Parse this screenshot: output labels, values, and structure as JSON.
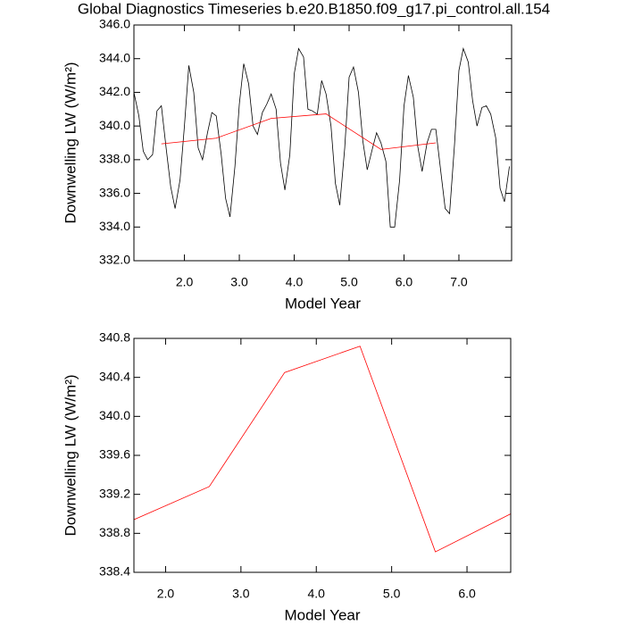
{
  "chart_data": [
    {
      "type": "line",
      "title": "Global Diagnostics Timeseries b.e20.B1850.f09_g17.pi_control.all.154",
      "xlabel": "Model Year",
      "ylabel": "Downwelling LW (W/m²)",
      "xlim": [
        1.08,
        7.96
      ],
      "ylim": [
        332,
        346
      ],
      "xticks": [
        {
          "value": 2,
          "label": "2.0"
        },
        {
          "value": 3,
          "label": "3.0"
        },
        {
          "value": 4,
          "label": "4.0"
        },
        {
          "value": 5,
          "label": "5.0"
        },
        {
          "value": 6,
          "label": "6.0"
        },
        {
          "value": 7,
          "label": "7.0"
        }
      ],
      "yticks": [
        {
          "value": 332,
          "label": "332.0"
        },
        {
          "value": 334,
          "label": "334.0"
        },
        {
          "value": 336,
          "label": "336.0"
        },
        {
          "value": 338,
          "label": "338.0"
        },
        {
          "value": 340,
          "label": "340.0"
        },
        {
          "value": 342,
          "label": "342.0"
        },
        {
          "value": 344,
          "label": "344.0"
        },
        {
          "value": 346,
          "label": "346.0"
        }
      ],
      "series": [
        {
          "color": "#000000",
          "x": [
            1.08,
            1.17,
            1.25,
            1.33,
            1.42,
            1.5,
            1.58,
            1.67,
            1.75,
            1.83,
            1.92,
            2.0,
            2.08,
            2.17,
            2.25,
            2.33,
            2.42,
            2.5,
            2.58,
            2.67,
            2.75,
            2.83,
            2.92,
            3.0,
            3.08,
            3.17,
            3.25,
            3.33,
            3.42,
            3.5,
            3.58,
            3.67,
            3.75,
            3.83,
            3.92,
            4.0,
            4.08,
            4.17,
            4.25,
            4.33,
            4.42,
            4.5,
            4.58,
            4.67,
            4.75,
            4.83,
            4.92,
            5.0,
            5.08,
            5.17,
            5.25,
            5.33,
            5.42,
            5.5,
            5.58,
            5.67,
            5.75,
            5.83,
            5.92,
            6.0,
            6.08,
            6.17,
            6.25,
            6.33,
            6.42,
            6.5,
            6.58,
            6.67,
            6.75,
            6.83,
            6.92,
            7.0,
            7.08,
            7.17,
            7.25,
            7.33,
            7.42,
            7.5,
            7.58,
            7.67,
            7.75,
            7.83,
            7.92
          ],
          "values": [
            342.0,
            340.6,
            338.5,
            338.0,
            338.3,
            340.9,
            341.2,
            338.6,
            336.4,
            335.1,
            336.8,
            340.0,
            343.6,
            342.0,
            338.7,
            338.0,
            339.6,
            340.8,
            340.6,
            338.3,
            335.7,
            334.6,
            337.6,
            341.3,
            343.7,
            342.5,
            340.0,
            339.5,
            340.8,
            341.3,
            341.9,
            341.0,
            337.8,
            336.2,
            338.3,
            343.1,
            344.6,
            344.1,
            341.0,
            340.9,
            340.7,
            342.7,
            341.9,
            340.0,
            336.6,
            335.3,
            338.7,
            342.9,
            343.5,
            342.0,
            339.1,
            337.4,
            338.6,
            339.6,
            339.0,
            337.9,
            334.0,
            334.0,
            336.8,
            341.2,
            343.0,
            341.7,
            338.8,
            337.3,
            339.0,
            339.8,
            339.8,
            337.3,
            335.1,
            334.8,
            338.9,
            343.3,
            344.6,
            343.8,
            341.5,
            340.0,
            341.1,
            341.2,
            340.7,
            339.3,
            336.3,
            335.5,
            337.6
          ]
        },
        {
          "color": "#ff0000",
          "x": [
            1.58,
            2.58,
            3.58,
            4.58,
            5.58,
            6.58
          ],
          "values": [
            338.94,
            339.28,
            340.45,
            340.72,
            338.61,
            339.0
          ]
        }
      ]
    },
    {
      "type": "line",
      "xlabel": "Model Year",
      "ylabel": "Downwelling LW (W/m²)",
      "xlim": [
        1.58,
        6.58
      ],
      "ylim": [
        338.4,
        340.8
      ],
      "xticks": [
        {
          "value": 2,
          "label": "2.0"
        },
        {
          "value": 3,
          "label": "3.0"
        },
        {
          "value": 4,
          "label": "4.0"
        },
        {
          "value": 5,
          "label": "5.0"
        },
        {
          "value": 6,
          "label": "6.0"
        }
      ],
      "yticks": [
        338.4,
        338.8,
        339.2,
        339.6,
        {
          "value": 340,
          "label": "340.0"
        },
        340.4,
        340.8
      ],
      "series": [
        {
          "color": "#ff0000",
          "x": [
            1.58,
            2.58,
            3.58,
            4.58,
            5.58,
            6.58
          ],
          "values": [
            338.94,
            339.28,
            340.45,
            340.72,
            338.61,
            339.0
          ]
        }
      ]
    }
  ]
}
